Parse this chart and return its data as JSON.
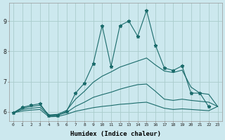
{
  "xlabel": "Humidex (Indice chaleur)",
  "background_color": "#cce8ee",
  "grid_color": "#aacccc",
  "line_color": "#1a6b6b",
  "xlim": [
    -0.5,
    23.5
  ],
  "ylim": [
    5.7,
    9.6
  ],
  "xticks": [
    0,
    1,
    2,
    3,
    4,
    5,
    6,
    7,
    8,
    9,
    10,
    11,
    12,
    13,
    14,
    15,
    16,
    17,
    18,
    19,
    20,
    21,
    22,
    23
  ],
  "yticks": [
    6,
    7,
    8,
    9
  ],
  "line1_x": [
    0,
    1,
    2,
    3,
    4,
    5,
    6,
    7,
    8,
    9,
    10,
    11,
    12,
    13,
    14,
    15,
    16,
    17,
    18,
    19,
    20,
    21,
    22
  ],
  "line1_y": [
    5.97,
    6.15,
    6.22,
    6.27,
    5.87,
    5.88,
    6.02,
    6.62,
    6.95,
    7.6,
    8.85,
    7.5,
    8.85,
    9.0,
    8.5,
    9.35,
    8.2,
    7.45,
    7.37,
    7.52,
    6.62,
    6.62,
    6.17
  ],
  "line2_x": [
    0,
    1,
    2,
    3,
    4,
    5,
    6,
    7,
    8,
    9,
    10,
    11,
    12,
    13,
    14,
    15,
    16,
    17,
    18,
    19,
    20,
    21,
    22,
    23
  ],
  "line2_y": [
    5.97,
    6.12,
    6.18,
    6.22,
    5.9,
    5.92,
    6.05,
    6.42,
    6.68,
    6.98,
    7.18,
    7.32,
    7.48,
    7.58,
    7.68,
    7.78,
    7.55,
    7.35,
    7.3,
    7.38,
    6.82,
    6.62,
    6.58,
    6.18
  ],
  "line3_x": [
    0,
    1,
    2,
    3,
    4,
    5,
    6,
    7,
    8,
    9,
    10,
    11,
    12,
    13,
    14,
    15,
    16,
    17,
    18,
    19,
    20,
    21,
    22,
    23
  ],
  "line3_y": [
    5.97,
    6.08,
    6.12,
    6.15,
    5.88,
    5.9,
    5.98,
    6.18,
    6.32,
    6.48,
    6.57,
    6.65,
    6.75,
    6.83,
    6.9,
    6.92,
    6.68,
    6.42,
    6.38,
    6.42,
    6.38,
    6.35,
    6.32,
    6.18
  ],
  "line4_x": [
    0,
    1,
    2,
    3,
    4,
    5,
    6,
    7,
    8,
    9,
    10,
    11,
    12,
    13,
    14,
    15,
    16,
    17,
    18,
    19,
    20,
    21,
    22,
    23
  ],
  "line4_y": [
    5.97,
    6.03,
    6.06,
    6.08,
    5.84,
    5.85,
    5.92,
    6.02,
    6.08,
    6.14,
    6.18,
    6.21,
    6.25,
    6.27,
    6.3,
    6.32,
    6.22,
    6.12,
    6.08,
    6.1,
    6.08,
    6.06,
    6.04,
    6.18
  ]
}
